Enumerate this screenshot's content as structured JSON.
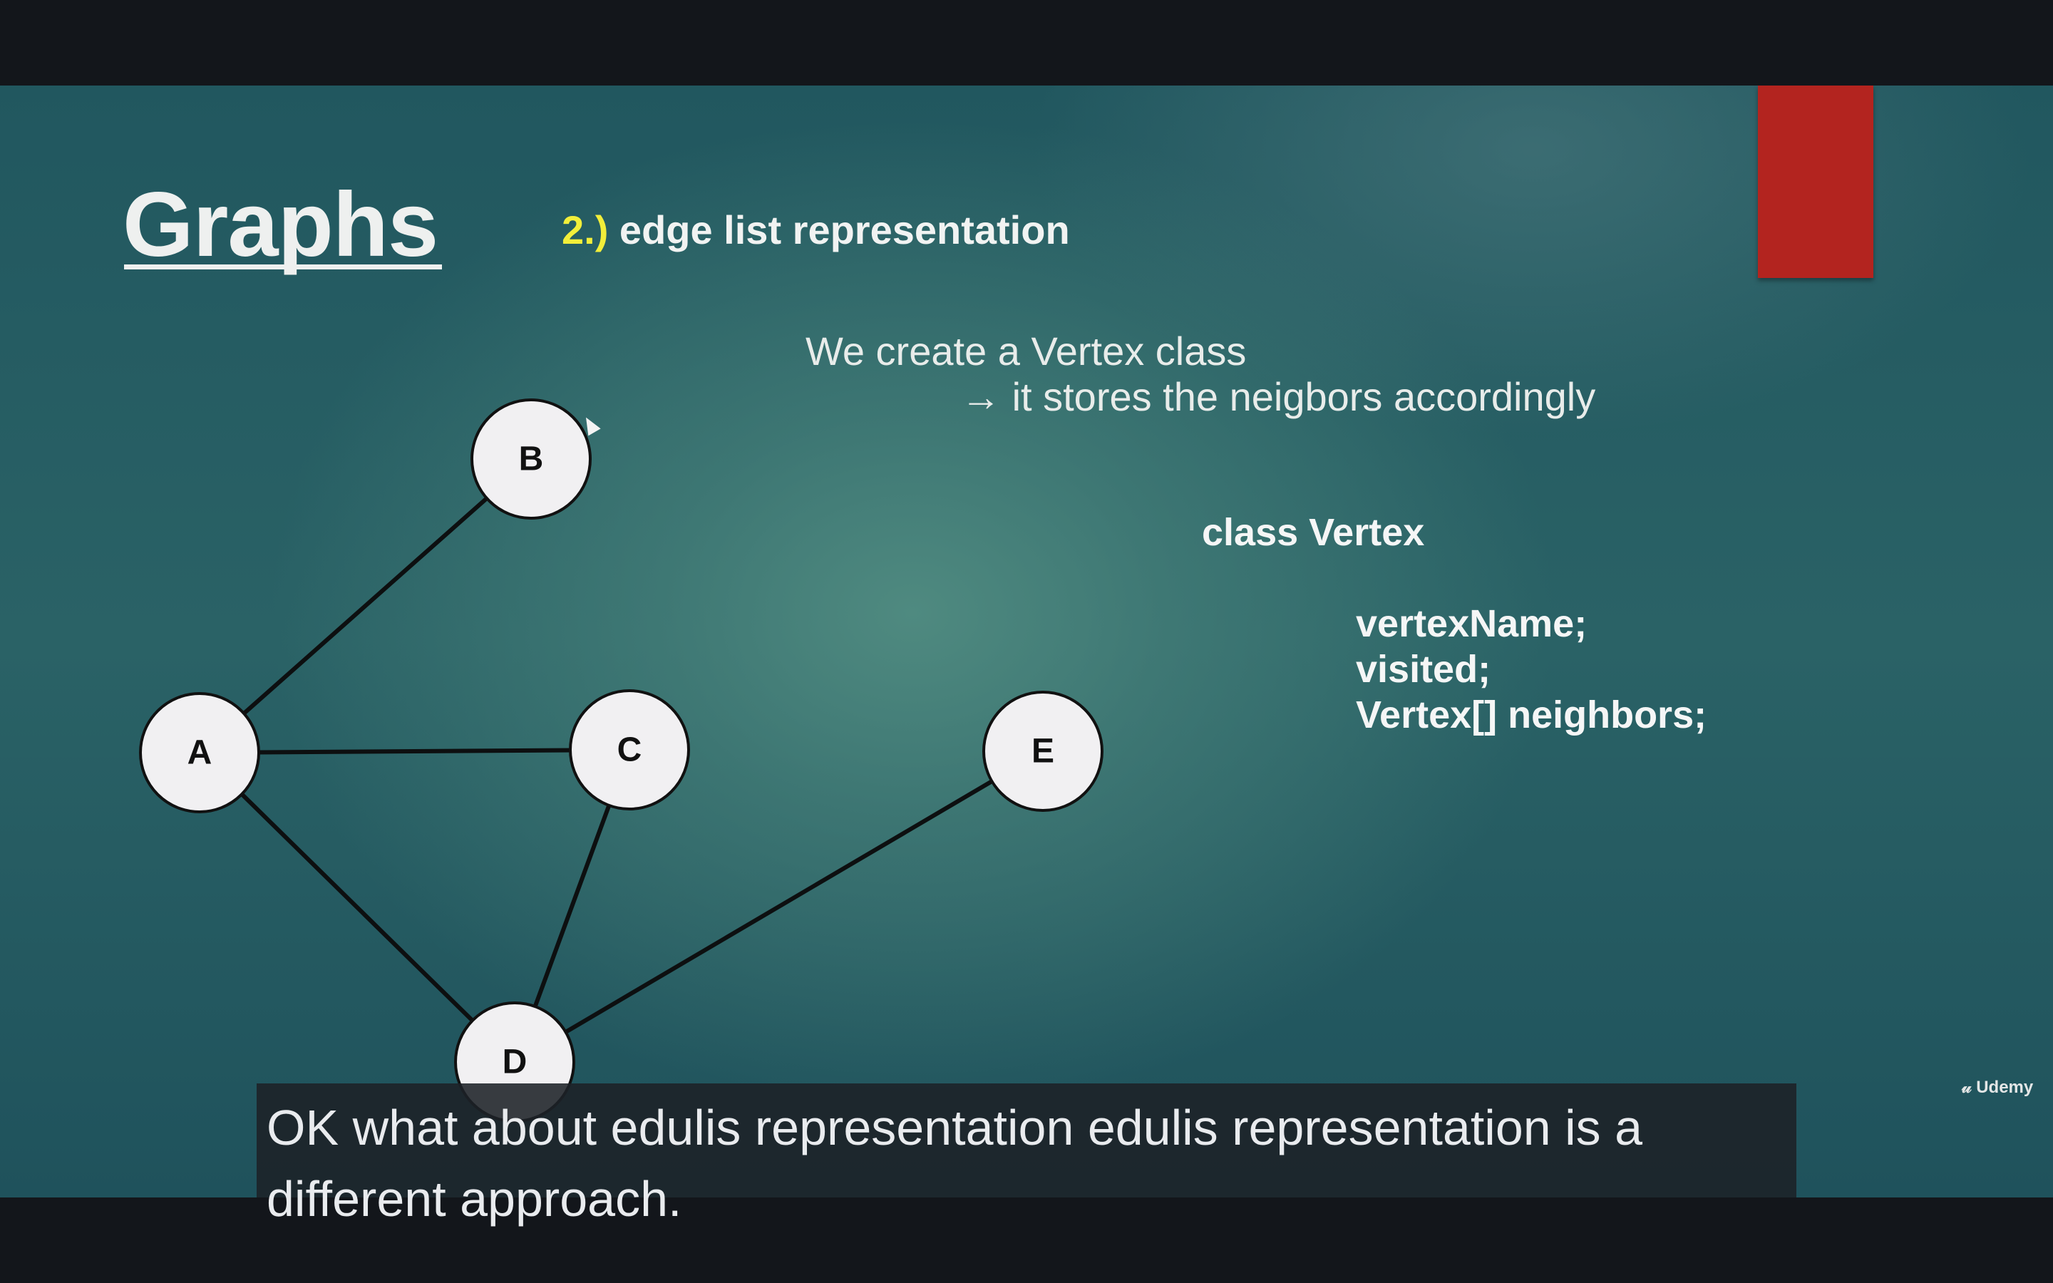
{
  "slide": {
    "title": "Graphs",
    "subtitle_number": "2.)",
    "subtitle_text": "edge list representation",
    "description_line1": "We create a Vertex class",
    "description_arrow": "→",
    "description_line2": "it stores the neigbors accordingly",
    "code_class": "class Vertex",
    "code_fields": [
      "vertexName;",
      "visited;",
      "Vertex[] neighbors;"
    ]
  },
  "graph": {
    "nodes": [
      "A",
      "B",
      "C",
      "D",
      "E"
    ],
    "edges": [
      [
        "A",
        "B"
      ],
      [
        "A",
        "C"
      ],
      [
        "A",
        "D"
      ],
      [
        "C",
        "D"
      ],
      [
        "D",
        "E"
      ]
    ]
  },
  "caption": {
    "text": "OK what about edulis representation edulis representation is a different approach."
  },
  "branding": {
    "logo_text": "Udemy",
    "logo_icon": "udemy-u-icon"
  },
  "colors": {
    "accent_yellow": "#f2ee3a",
    "accent_red": "#b3241f",
    "slide_teal": "#2a6266",
    "letterbox": "#13161b"
  }
}
